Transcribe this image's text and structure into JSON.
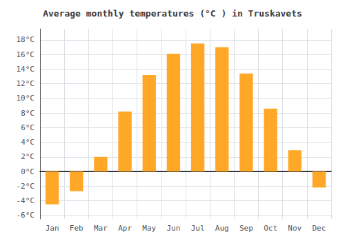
{
  "chart_data": {
    "type": "bar",
    "title": "Average monthly temperatures (°C ) in Truskavets",
    "categories": [
      "Jan",
      "Feb",
      "Mar",
      "Apr",
      "May",
      "Jun",
      "Jul",
      "Aug",
      "Sep",
      "Oct",
      "Nov",
      "Dec"
    ],
    "values": [
      -4.5,
      -2.7,
      2.0,
      8.2,
      13.2,
      16.1,
      17.5,
      17.0,
      13.4,
      8.6,
      2.9,
      -2.2
    ],
    "color": "#FFA726",
    "ylim": [
      -6.5,
      19.5
    ],
    "yticks": [
      {
        "value": -6,
        "label": "-6°C"
      },
      {
        "value": -4,
        "label": "-4°C"
      },
      {
        "value": -2,
        "label": "-2°C"
      },
      {
        "value": 0,
        "label": "0°C"
      },
      {
        "value": 2,
        "label": "2°C"
      },
      {
        "value": 4,
        "label": "4°C"
      },
      {
        "value": 6,
        "label": "6°C"
      },
      {
        "value": 8,
        "label": "8°C"
      },
      {
        "value": 10,
        "label": "10°C"
      },
      {
        "value": 12,
        "label": "12°C"
      },
      {
        "value": 14,
        "label": "14°C"
      },
      {
        "value": 16,
        "label": "16°C"
      },
      {
        "value": 18,
        "label": "18°C"
      }
    ],
    "grid": true
  }
}
